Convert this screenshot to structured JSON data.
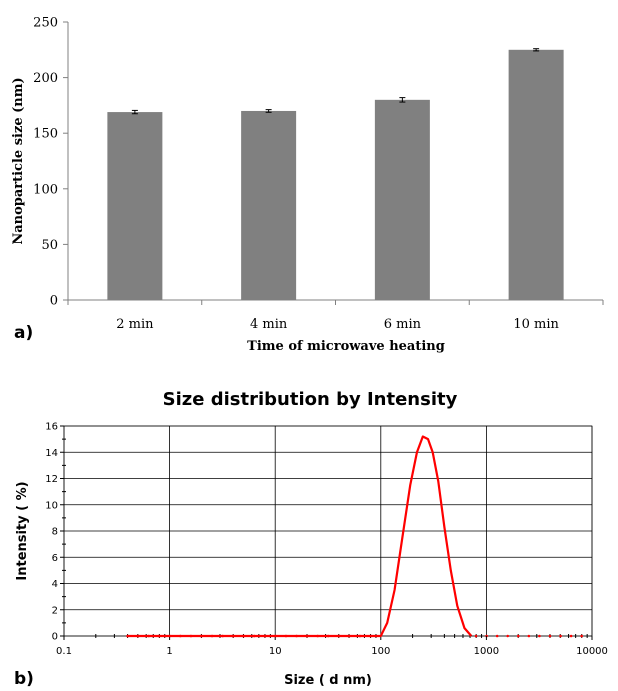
{
  "chart_data": [
    {
      "type": "bar",
      "panel_label": "a)",
      "title": "",
      "categories": [
        "2 min",
        "4 min",
        "6 min",
        "10 min"
      ],
      "values": [
        169,
        170,
        180,
        225
      ],
      "errors": [
        1.5,
        1.2,
        2.0,
        1.0
      ],
      "xlabel": "Time of microwave heating",
      "ylabel": "Nanoparticle size (nm)",
      "ylim": [
        0,
        250
      ],
      "yticks": [
        "0",
        "50",
        "100",
        "150",
        "200",
        "250"
      ],
      "bar_color": "#808080",
      "grid": false,
      "legend": "none"
    },
    {
      "type": "line",
      "panel_label": "b)",
      "title": "Size distribution by Intensity",
      "xlabel": "Size ( d nm)",
      "ylabel": "Intensity ( %)",
      "xscale": "log",
      "xlim": [
        0.1,
        10000
      ],
      "ylim": [
        0,
        16
      ],
      "xticks": [
        "0.1",
        "1",
        "10",
        "100",
        "1000",
        "10000"
      ],
      "yticks": [
        "0",
        "2",
        "4",
        "6",
        "8",
        "10",
        "12",
        "14",
        "16"
      ],
      "grid": true,
      "legend": "none",
      "series": [
        {
          "color": "#ff0000",
          "x": [
            0.4,
            100,
            115,
            135,
            160,
            190,
            220,
            250,
            280,
            310,
            350,
            400,
            460,
            530,
            620,
            720
          ],
          "y": [
            0,
            0,
            1.0,
            3.5,
            7.5,
            11.5,
            14.0,
            15.2,
            15.0,
            14.0,
            11.8,
            8.3,
            5.0,
            2.3,
            0.6,
            0
          ]
        }
      ]
    }
  ]
}
